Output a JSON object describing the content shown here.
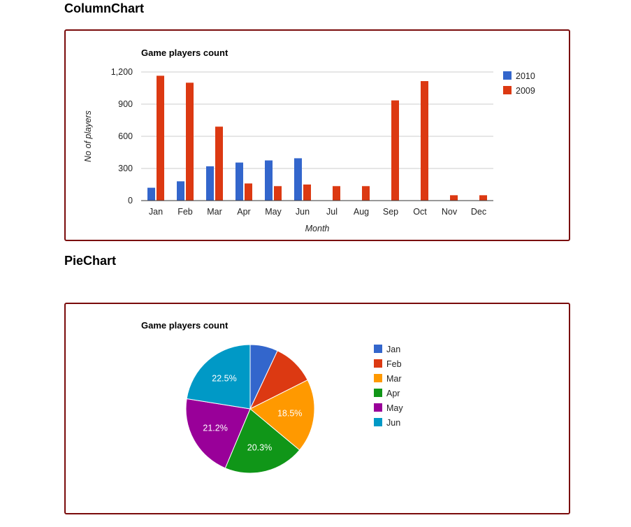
{
  "page": {
    "column_heading": "ColumnChart",
    "pie_heading": "PieChart"
  },
  "colors": {
    "border": "#7a0b0b",
    "grid": "#cccccc",
    "series": [
      "#3366cc",
      "#dc3912"
    ],
    "slices": [
      "#3366cc",
      "#dc3912",
      "#ff9900",
      "#109618",
      "#990099",
      "#0099c6"
    ]
  },
  "chart_data": [
    {
      "type": "bar",
      "title": "Game players count",
      "xlabel": "Month",
      "ylabel": "No of players",
      "categories": [
        "Jan",
        "Feb",
        "Mar",
        "Apr",
        "May",
        "Jun",
        "Jul",
        "Aug",
        "Sep",
        "Oct",
        "Nov",
        "Dec"
      ],
      "series": [
        {
          "name": "2010",
          "values": [
            120,
            180,
            320,
            355,
            375,
            395,
            0,
            0,
            0,
            0,
            0,
            0
          ]
        },
        {
          "name": "2009",
          "values": [
            1165,
            1100,
            690,
            160,
            135,
            150,
            135,
            135,
            935,
            1115,
            50,
            50
          ]
        }
      ],
      "ylim": [
        0,
        1200
      ],
      "yticks": [
        0,
        300,
        600,
        900,
        1200
      ],
      "ytick_labels": [
        "0",
        "300",
        "600",
        "900",
        "1,200"
      ],
      "grid": true,
      "legend": "right"
    },
    {
      "type": "pie",
      "title": "Game players count",
      "labels": [
        "Jan",
        "Feb",
        "Mar",
        "Apr",
        "May",
        "Jun"
      ],
      "percents": [
        7.0,
        10.6,
        18.5,
        20.3,
        21.2,
        22.5
      ],
      "shown_labels": [
        "",
        "",
        "18.5%",
        "20.3%",
        "21.2%",
        "22.5%"
      ],
      "legend": "right"
    }
  ]
}
